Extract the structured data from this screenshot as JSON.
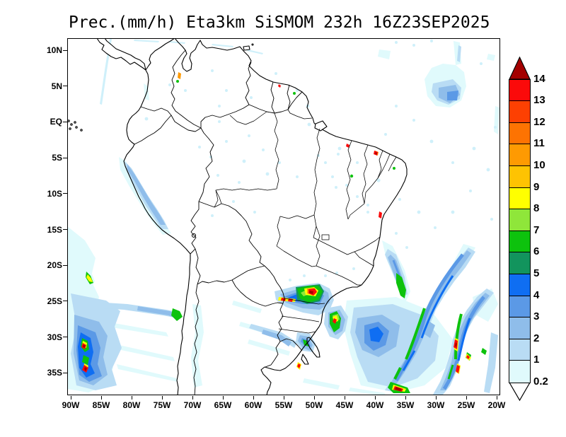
{
  "title": "Prec.(mm/h) Eta3km SiSMOM 232h 16Z23SEP2025",
  "map": {
    "lat_ticks": [
      "10N",
      "5N",
      "EQ",
      "5S",
      "10S",
      "15S",
      "20S",
      "25S",
      "30S",
      "35S"
    ],
    "lon_ticks": [
      "90W",
      "85W",
      "80W",
      "75W",
      "70W",
      "65W",
      "60W",
      "55W",
      "50W",
      "45W",
      "40W",
      "35W",
      "30W",
      "25W",
      "20W"
    ]
  },
  "colorbar": {
    "tick_labels": [
      "14",
      "13",
      "12",
      "11",
      "10",
      "9",
      "8",
      "7",
      "6",
      "5",
      "4",
      "3",
      "2",
      "1",
      "0.2"
    ],
    "segment_colors_top_to_bottom": [
      "#FB0A0A",
      "#FD4002",
      "#FD7302",
      "#FE9A02",
      "#FEC302",
      "#FFFF00",
      "#8FE63A",
      "#0DC20D",
      "#12945D",
      "#0F6EF2",
      "#5B99E6",
      "#8FBDEA",
      "#B9DCF4",
      "#E0FAFC"
    ],
    "overflow_color": "#A40000",
    "underflow_color": "#FFFFFF"
  },
  "chart_data": {
    "type": "heatmap",
    "title": "Prec.(mm/h) Eta3km SiSMOM 232h 16Z23SEP2025",
    "variable": "Prec.",
    "units": "mm/h",
    "x_tick_labels": [
      "90W",
      "85W",
      "80W",
      "75W",
      "70W",
      "65W",
      "60W",
      "55W",
      "50W",
      "45W",
      "40W",
      "35W",
      "30W",
      "25W",
      "20W"
    ],
    "y_tick_labels": [
      "10N",
      "5N",
      "EQ",
      "5S",
      "10S",
      "15S",
      "20S",
      "25S",
      "30S",
      "35S"
    ],
    "colorbar_levels": [
      0.2,
      1,
      2,
      3,
      4,
      5,
      6,
      7,
      8,
      9,
      10,
      11,
      12,
      13,
      14
    ],
    "colorbar_colors_low_to_high": [
      "#E0FAFC",
      "#B9DCF4",
      "#8FBDEA",
      "#5B99E6",
      "#0F6EF2",
      "#12945D",
      "#0DC20D",
      "#8FE63A",
      "#FFFF00",
      "#FEC302",
      "#FE9A02",
      "#FD7302",
      "#FD4002",
      "#FB0A0A"
    ],
    "legend_position": "right",
    "grid": "off",
    "features": [
      {
        "area": "Pacific off Peru coast (~80W-75W, 5S-15S)",
        "intensity_mm_h": "0.2-3 stratiform band"
      },
      {
        "area": "SE Pacific off Chile (~90W-85W, 27S-35S)",
        "intensity_mm_h": "1-5 with embedded cells >14"
      },
      {
        "area": "Sao Paulo / SE Brazil (~50W-46W, 23S-25S)",
        "intensity_mm_h": "convective cluster up to >14"
      },
      {
        "area": "South Atlantic frontal bands (~40W-24W, 20S-38S)",
        "intensity_mm_h": "1-7 bands, embedded cells >14"
      },
      {
        "area": "Tropical N Atlantic (~28W-22W, 2N-8N)",
        "intensity_mm_h": "0.2-3 patch"
      },
      {
        "area": "Scattered showers Amazon / NE Brazil coast",
        "intensity_mm_h": "0.2-1, isolated cells >13"
      }
    ]
  }
}
